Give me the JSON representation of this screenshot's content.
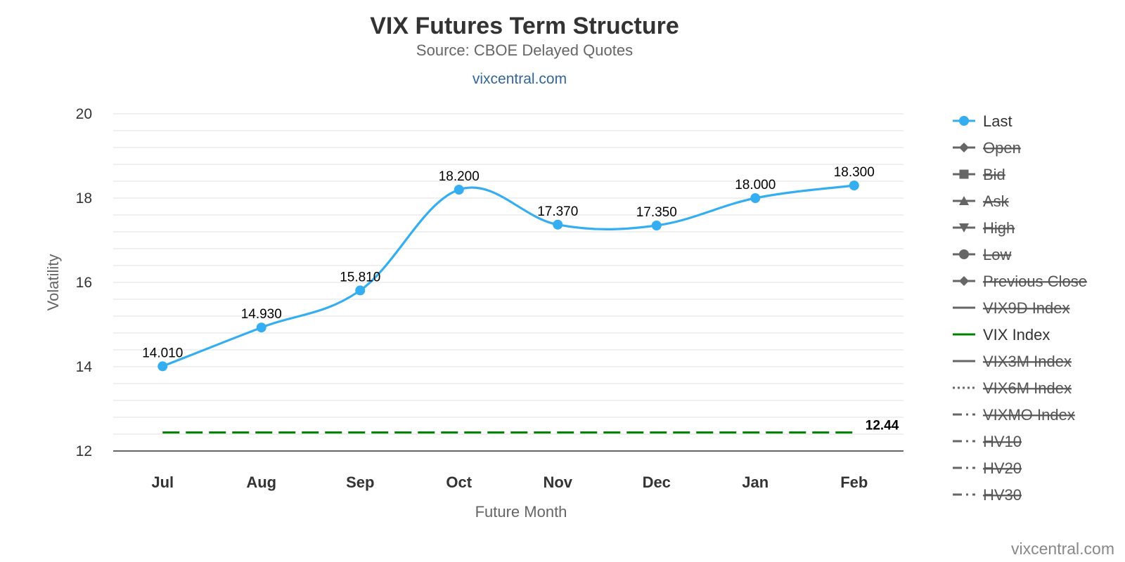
{
  "chart_data": {
    "type": "line",
    "title": "VIX Futures Term Structure",
    "subtitle": "Source: CBOE Delayed Quotes",
    "credit_top": "vixcentral.com",
    "credit_bottom": "vixcentral.com",
    "xlabel": "Future Month",
    "ylabel": "Volatility",
    "ylim": [
      12,
      20
    ],
    "yticks": [
      "12",
      "14",
      "16",
      "18",
      "20"
    ],
    "minor_grid_step": 0.4,
    "categories": [
      "Jul",
      "Aug",
      "Sep",
      "Oct",
      "Nov",
      "Dec",
      "Jan",
      "Feb"
    ],
    "series": [
      {
        "name": "Last",
        "values": [
          14.01,
          14.93,
          15.81,
          18.2,
          17.37,
          17.35,
          18.0,
          18.3
        ],
        "labels": [
          "14.010",
          "14.930",
          "15.810",
          "18.200",
          "17.370",
          "17.350",
          "18.000",
          "18.300"
        ],
        "color": "#34aef0",
        "style": "spline"
      },
      {
        "name": "VIX Index",
        "values": [
          12.44,
          12.44,
          12.44,
          12.44,
          12.44,
          12.44,
          12.44,
          12.44
        ],
        "end_label": "12.44",
        "color": "#008000",
        "style": "dashed"
      }
    ],
    "legend": {
      "position": "right",
      "items": [
        {
          "name": "Last",
          "symbol": "circle",
          "line": "solid",
          "visible": true,
          "color": "#34aef0"
        },
        {
          "name": "Open",
          "symbol": "diamond",
          "line": "solid",
          "visible": false,
          "color": "#666666"
        },
        {
          "name": "Bid",
          "symbol": "square",
          "line": "solid",
          "visible": false,
          "color": "#666666"
        },
        {
          "name": "Ask",
          "symbol": "triangle",
          "line": "solid",
          "visible": false,
          "color": "#666666"
        },
        {
          "name": "High",
          "symbol": "triangle-down",
          "line": "solid",
          "visible": false,
          "color": "#666666"
        },
        {
          "name": "Low",
          "symbol": "circle",
          "line": "solid",
          "visible": false,
          "color": "#666666"
        },
        {
          "name": "Previous Close",
          "symbol": "diamond",
          "line": "solid",
          "visible": false,
          "color": "#666666"
        },
        {
          "name": "VIX9D Index",
          "symbol": "none",
          "line": "solid",
          "visible": false,
          "color": "#666666"
        },
        {
          "name": "VIX Index",
          "symbol": "none",
          "line": "solid",
          "visible": true,
          "color": "#008000"
        },
        {
          "name": "VIX3M Index",
          "symbol": "none",
          "line": "solid",
          "visible": false,
          "color": "#666666"
        },
        {
          "name": "VIX6M Index",
          "symbol": "none",
          "line": "dotted",
          "visible": false,
          "color": "#666666"
        },
        {
          "name": "VIXMO Index",
          "symbol": "none",
          "line": "dashdot",
          "visible": false,
          "color": "#666666"
        },
        {
          "name": "HV10",
          "symbol": "none",
          "line": "dashdot",
          "visible": false,
          "color": "#666666"
        },
        {
          "name": "HV20",
          "symbol": "none",
          "line": "dashdot",
          "visible": false,
          "color": "#666666"
        },
        {
          "name": "HV30",
          "symbol": "none",
          "line": "dashdot",
          "visible": false,
          "color": "#666666"
        }
      ]
    }
  }
}
